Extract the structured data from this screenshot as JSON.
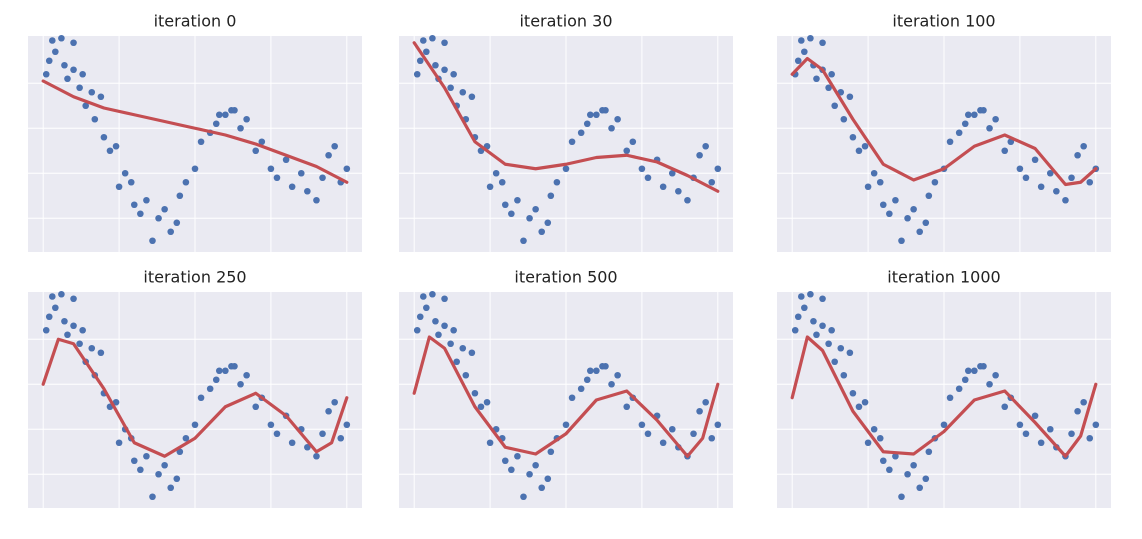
{
  "chart_data": [
    {
      "type": "scatter",
      "title": "iteration 0",
      "xlim": [
        -0.05,
        1.05
      ],
      "ylim": [
        -2.75,
        2.05
      ],
      "xticks": [
        0,
        0.25,
        0.5,
        0.75,
        1
      ],
      "yticks": [
        1,
        0,
        -1,
        -2
      ],
      "grid": true,
      "series": [
        {
          "type": "scatter",
          "color": "#4c72b0",
          "x": [
            0.01,
            0.02,
            0.03,
            0.04,
            0.06,
            0.07,
            0.08,
            0.1,
            0.1,
            0.12,
            0.13,
            0.14,
            0.16,
            0.17,
            0.19,
            0.2,
            0.22,
            0.24,
            0.25,
            0.27,
            0.29,
            0.3,
            0.32,
            0.34,
            0.36,
            0.38,
            0.4,
            0.42,
            0.44,
            0.45,
            0.47,
            0.5,
            0.52,
            0.55,
            0.57,
            0.58,
            0.6,
            0.62,
            0.63,
            0.65,
            0.67,
            0.7,
            0.72,
            0.75,
            0.77,
            0.8,
            0.82,
            0.85,
            0.87,
            0.9,
            0.92,
            0.94,
            0.96,
            0.98,
            1.0
          ],
          "values": [
            1.2,
            1.5,
            1.95,
            1.7,
            2.0,
            1.4,
            1.1,
            1.9,
            1.3,
            0.9,
            1.2,
            0.5,
            0.8,
            0.2,
            0.7,
            -0.2,
            -0.5,
            -0.4,
            -1.3,
            -1.0,
            -1.2,
            -1.7,
            -1.9,
            -1.6,
            -2.5,
            -2.0,
            -1.8,
            -2.3,
            -2.1,
            -1.5,
            -1.2,
            -0.9,
            -0.3,
            -0.1,
            0.1,
            0.3,
            0.3,
            0.4,
            0.4,
            0.0,
            0.2,
            -0.5,
            -0.3,
            -0.9,
            -1.1,
            -0.7,
            -1.3,
            -1.0,
            -1.4,
            -1.6,
            -1.1,
            -0.6,
            -0.4,
            -1.2,
            -0.9
          ]
        },
        {
          "type": "line",
          "color": "#c44e52",
          "x": [
            0,
            0.1,
            0.2,
            0.3,
            0.4,
            0.5,
            0.6,
            0.7,
            0.8,
            0.9,
            1.0
          ],
          "values": [
            1.05,
            0.7,
            0.45,
            0.3,
            0.15,
            0.0,
            -0.15,
            -0.35,
            -0.6,
            -0.85,
            -1.2
          ]
        }
      ]
    },
    {
      "type": "scatter",
      "title": "iteration 30",
      "xlim": [
        -0.05,
        1.05
      ],
      "ylim": [
        -2.75,
        2.05
      ],
      "xticks": [
        0,
        0.25,
        0.5,
        0.75,
        1
      ],
      "yticks": [
        1,
        0,
        -1,
        -2
      ],
      "grid": true,
      "series": [
        {
          "type": "scatter",
          "color": "#4c72b0",
          "x": [
            0.01,
            0.02,
            0.03,
            0.04,
            0.06,
            0.07,
            0.08,
            0.1,
            0.1,
            0.12,
            0.13,
            0.14,
            0.16,
            0.17,
            0.19,
            0.2,
            0.22,
            0.24,
            0.25,
            0.27,
            0.29,
            0.3,
            0.32,
            0.34,
            0.36,
            0.38,
            0.4,
            0.42,
            0.44,
            0.45,
            0.47,
            0.5,
            0.52,
            0.55,
            0.57,
            0.58,
            0.6,
            0.62,
            0.63,
            0.65,
            0.67,
            0.7,
            0.72,
            0.75,
            0.77,
            0.8,
            0.82,
            0.85,
            0.87,
            0.9,
            0.92,
            0.94,
            0.96,
            0.98,
            1.0
          ],
          "values": [
            1.2,
            1.5,
            1.95,
            1.7,
            2.0,
            1.4,
            1.1,
            1.9,
            1.3,
            0.9,
            1.2,
            0.5,
            0.8,
            0.2,
            0.7,
            -0.2,
            -0.5,
            -0.4,
            -1.3,
            -1.0,
            -1.2,
            -1.7,
            -1.9,
            -1.6,
            -2.5,
            -2.0,
            -1.8,
            -2.3,
            -2.1,
            -1.5,
            -1.2,
            -0.9,
            -0.3,
            -0.1,
            0.1,
            0.3,
            0.3,
            0.4,
            0.4,
            0.0,
            0.2,
            -0.5,
            -0.3,
            -0.9,
            -1.1,
            -0.7,
            -1.3,
            -1.0,
            -1.4,
            -1.6,
            -1.1,
            -0.6,
            -0.4,
            -1.2,
            -0.9
          ]
        },
        {
          "type": "line",
          "color": "#c44e52",
          "x": [
            0,
            0.1,
            0.2,
            0.3,
            0.4,
            0.5,
            0.6,
            0.7,
            0.8,
            0.9,
            1.0
          ],
          "values": [
            1.9,
            0.9,
            -0.3,
            -0.8,
            -0.9,
            -0.8,
            -0.65,
            -0.6,
            -0.75,
            -1.05,
            -1.4
          ]
        }
      ]
    },
    {
      "type": "scatter",
      "title": "iteration 100",
      "xlim": [
        -0.05,
        1.05
      ],
      "ylim": [
        -2.75,
        2.05
      ],
      "xticks": [
        0,
        0.25,
        0.5,
        0.75,
        1
      ],
      "yticks": [
        1,
        0,
        -1,
        -2
      ],
      "grid": true,
      "series": [
        {
          "type": "scatter",
          "color": "#4c72b0",
          "x": [
            0.01,
            0.02,
            0.03,
            0.04,
            0.06,
            0.07,
            0.08,
            0.1,
            0.1,
            0.12,
            0.13,
            0.14,
            0.16,
            0.17,
            0.19,
            0.2,
            0.22,
            0.24,
            0.25,
            0.27,
            0.29,
            0.3,
            0.32,
            0.34,
            0.36,
            0.38,
            0.4,
            0.42,
            0.44,
            0.45,
            0.47,
            0.5,
            0.52,
            0.55,
            0.57,
            0.58,
            0.6,
            0.62,
            0.63,
            0.65,
            0.67,
            0.7,
            0.72,
            0.75,
            0.77,
            0.8,
            0.82,
            0.85,
            0.87,
            0.9,
            0.92,
            0.94,
            0.96,
            0.98,
            1.0
          ],
          "values": [
            1.2,
            1.5,
            1.95,
            1.7,
            2.0,
            1.4,
            1.1,
            1.9,
            1.3,
            0.9,
            1.2,
            0.5,
            0.8,
            0.2,
            0.7,
            -0.2,
            -0.5,
            -0.4,
            -1.3,
            -1.0,
            -1.2,
            -1.7,
            -1.9,
            -1.6,
            -2.5,
            -2.0,
            -1.8,
            -2.3,
            -2.1,
            -1.5,
            -1.2,
            -0.9,
            -0.3,
            -0.1,
            0.1,
            0.3,
            0.3,
            0.4,
            0.4,
            0.0,
            0.2,
            -0.5,
            -0.3,
            -0.9,
            -1.1,
            -0.7,
            -1.3,
            -1.0,
            -1.4,
            -1.6,
            -1.1,
            -0.6,
            -0.4,
            -1.2,
            -0.9
          ]
        },
        {
          "type": "line",
          "color": "#c44e52",
          "x": [
            0,
            0.05,
            0.1,
            0.2,
            0.3,
            0.4,
            0.5,
            0.6,
            0.7,
            0.8,
            0.9,
            0.95,
            1.0
          ],
          "values": [
            1.2,
            1.55,
            1.3,
            0.2,
            -0.8,
            -1.15,
            -0.9,
            -0.4,
            -0.15,
            -0.45,
            -1.25,
            -1.2,
            -0.9
          ]
        }
      ]
    },
    {
      "type": "scatter",
      "title": "iteration 250",
      "xlim": [
        -0.05,
        1.05
      ],
      "ylim": [
        -2.75,
        2.05
      ],
      "xticks": [
        0,
        0.25,
        0.5,
        0.75,
        1
      ],
      "yticks": [
        1,
        0,
        -1,
        -2
      ],
      "grid": true,
      "series": [
        {
          "type": "scatter",
          "color": "#4c72b0",
          "x": [
            0.01,
            0.02,
            0.03,
            0.04,
            0.06,
            0.07,
            0.08,
            0.1,
            0.1,
            0.12,
            0.13,
            0.14,
            0.16,
            0.17,
            0.19,
            0.2,
            0.22,
            0.24,
            0.25,
            0.27,
            0.29,
            0.3,
            0.32,
            0.34,
            0.36,
            0.38,
            0.4,
            0.42,
            0.44,
            0.45,
            0.47,
            0.5,
            0.52,
            0.55,
            0.57,
            0.58,
            0.6,
            0.62,
            0.63,
            0.65,
            0.67,
            0.7,
            0.72,
            0.75,
            0.77,
            0.8,
            0.82,
            0.85,
            0.87,
            0.9,
            0.92,
            0.94,
            0.96,
            0.98,
            1.0
          ],
          "values": [
            1.2,
            1.5,
            1.95,
            1.7,
            2.0,
            1.4,
            1.1,
            1.9,
            1.3,
            0.9,
            1.2,
            0.5,
            0.8,
            0.2,
            0.7,
            -0.2,
            -0.5,
            -0.4,
            -1.3,
            -1.0,
            -1.2,
            -1.7,
            -1.9,
            -1.6,
            -2.5,
            -2.0,
            -1.8,
            -2.3,
            -2.1,
            -1.5,
            -1.2,
            -0.9,
            -0.3,
            -0.1,
            0.1,
            0.3,
            0.3,
            0.4,
            0.4,
            0.0,
            0.2,
            -0.5,
            -0.3,
            -0.9,
            -1.1,
            -0.7,
            -1.3,
            -1.0,
            -1.4,
            -1.6,
            -1.1,
            -0.6,
            -0.4,
            -1.2,
            -0.9
          ]
        },
        {
          "type": "line",
          "color": "#c44e52",
          "x": [
            0,
            0.05,
            0.1,
            0.2,
            0.3,
            0.4,
            0.5,
            0.6,
            0.7,
            0.8,
            0.9,
            0.95,
            1.0
          ],
          "values": [
            0.0,
            1.0,
            0.9,
            -0.1,
            -1.3,
            -1.6,
            -1.2,
            -0.5,
            -0.2,
            -0.7,
            -1.5,
            -1.3,
            -0.3
          ]
        }
      ]
    },
    {
      "type": "scatter",
      "title": "iteration 500",
      "xlim": [
        -0.05,
        1.05
      ],
      "ylim": [
        -2.75,
        2.05
      ],
      "xticks": [
        0,
        0.25,
        0.5,
        0.75,
        1
      ],
      "yticks": [
        1,
        0,
        -1,
        -2
      ],
      "grid": true,
      "series": [
        {
          "type": "scatter",
          "color": "#4c72b0",
          "x": [
            0.01,
            0.02,
            0.03,
            0.04,
            0.06,
            0.07,
            0.08,
            0.1,
            0.1,
            0.12,
            0.13,
            0.14,
            0.16,
            0.17,
            0.19,
            0.2,
            0.22,
            0.24,
            0.25,
            0.27,
            0.29,
            0.3,
            0.32,
            0.34,
            0.36,
            0.38,
            0.4,
            0.42,
            0.44,
            0.45,
            0.47,
            0.5,
            0.52,
            0.55,
            0.57,
            0.58,
            0.6,
            0.62,
            0.63,
            0.65,
            0.67,
            0.7,
            0.72,
            0.75,
            0.77,
            0.8,
            0.82,
            0.85,
            0.87,
            0.9,
            0.92,
            0.94,
            0.96,
            0.98,
            1.0
          ],
          "values": [
            1.2,
            1.5,
            1.95,
            1.7,
            2.0,
            1.4,
            1.1,
            1.9,
            1.3,
            0.9,
            1.2,
            0.5,
            0.8,
            0.2,
            0.7,
            -0.2,
            -0.5,
            -0.4,
            -1.3,
            -1.0,
            -1.2,
            -1.7,
            -1.9,
            -1.6,
            -2.5,
            -2.0,
            -1.8,
            -2.3,
            -2.1,
            -1.5,
            -1.2,
            -0.9,
            -0.3,
            -0.1,
            0.1,
            0.3,
            0.3,
            0.4,
            0.4,
            0.0,
            0.2,
            -0.5,
            -0.3,
            -0.9,
            -1.1,
            -0.7,
            -1.3,
            -1.0,
            -1.4,
            -1.6,
            -1.1,
            -0.6,
            -0.4,
            -1.2,
            -0.9
          ]
        },
        {
          "type": "line",
          "color": "#c44e52",
          "x": [
            0,
            0.05,
            0.1,
            0.2,
            0.3,
            0.4,
            0.5,
            0.6,
            0.7,
            0.8,
            0.9,
            0.95,
            1.0
          ],
          "values": [
            -0.2,
            1.05,
            0.8,
            -0.5,
            -1.4,
            -1.55,
            -1.1,
            -0.35,
            -0.15,
            -0.8,
            -1.6,
            -1.2,
            0.0
          ]
        }
      ]
    },
    {
      "type": "scatter",
      "title": "iteration 1000",
      "xlim": [
        -0.05,
        1.05
      ],
      "ylim": [
        -2.75,
        2.05
      ],
      "xticks": [
        0,
        0.25,
        0.5,
        0.75,
        1
      ],
      "yticks": [
        1,
        0,
        -1,
        -2
      ],
      "grid": true,
      "series": [
        {
          "type": "scatter",
          "color": "#4c72b0",
          "x": [
            0.01,
            0.02,
            0.03,
            0.04,
            0.06,
            0.07,
            0.08,
            0.1,
            0.1,
            0.12,
            0.13,
            0.14,
            0.16,
            0.17,
            0.19,
            0.2,
            0.22,
            0.24,
            0.25,
            0.27,
            0.29,
            0.3,
            0.32,
            0.34,
            0.36,
            0.38,
            0.4,
            0.42,
            0.44,
            0.45,
            0.47,
            0.5,
            0.52,
            0.55,
            0.57,
            0.58,
            0.6,
            0.62,
            0.63,
            0.65,
            0.67,
            0.7,
            0.72,
            0.75,
            0.77,
            0.8,
            0.82,
            0.85,
            0.87,
            0.9,
            0.92,
            0.94,
            0.96,
            0.98,
            1.0
          ],
          "values": [
            1.2,
            1.5,
            1.95,
            1.7,
            2.0,
            1.4,
            1.1,
            1.9,
            1.3,
            0.9,
            1.2,
            0.5,
            0.8,
            0.2,
            0.7,
            -0.2,
            -0.5,
            -0.4,
            -1.3,
            -1.0,
            -1.2,
            -1.7,
            -1.9,
            -1.6,
            -2.5,
            -2.0,
            -1.8,
            -2.3,
            -2.1,
            -1.5,
            -1.2,
            -0.9,
            -0.3,
            -0.1,
            0.1,
            0.3,
            0.3,
            0.4,
            0.4,
            0.0,
            0.2,
            -0.5,
            -0.3,
            -0.9,
            -1.1,
            -0.7,
            -1.3,
            -1.0,
            -1.4,
            -1.6,
            -1.1,
            -0.6,
            -0.4,
            -1.2,
            -0.9
          ]
        },
        {
          "type": "line",
          "color": "#c44e52",
          "x": [
            0,
            0.05,
            0.1,
            0.2,
            0.3,
            0.4,
            0.5,
            0.6,
            0.7,
            0.8,
            0.9,
            0.95,
            1.0
          ],
          "values": [
            -0.3,
            1.05,
            0.75,
            -0.6,
            -1.5,
            -1.55,
            -1.05,
            -0.35,
            -0.15,
            -0.85,
            -1.6,
            -1.15,
            0.0
          ]
        }
      ]
    }
  ]
}
